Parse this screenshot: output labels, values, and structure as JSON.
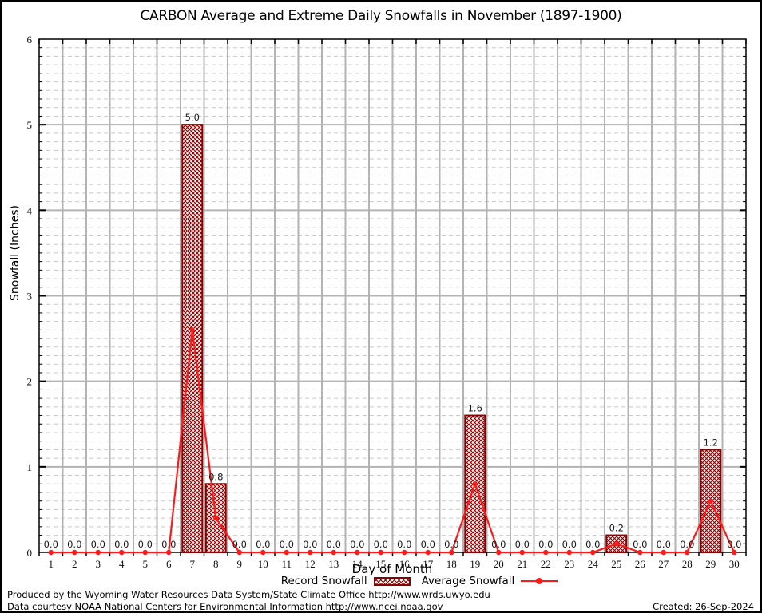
{
  "title": "CARBON Average and Extreme Daily Snowfalls in November (1897-1900)",
  "chart_data": {
    "type": "bar",
    "title": "CARBON Average and Extreme Daily Snowfalls in November (1897-1900)",
    "xlabel": "Day of Month",
    "ylabel": "Snowfall (Inches)",
    "ylim": [
      0,
      6
    ],
    "y_major_step": 1,
    "y_minor_step": 0.1,
    "grid": "on",
    "legend_position": "bottom",
    "categories": [
      1,
      2,
      3,
      4,
      5,
      6,
      7,
      8,
      9,
      10,
      11,
      12,
      13,
      14,
      15,
      16,
      17,
      18,
      19,
      20,
      21,
      22,
      23,
      24,
      25,
      26,
      27,
      28,
      29,
      30
    ],
    "series": [
      {
        "name": "Record Snowfall",
        "style": "bar",
        "color": "#8b0000",
        "values": [
          0.0,
          0.0,
          0.0,
          0.0,
          0.0,
          0.0,
          5.0,
          0.8,
          0.0,
          0.0,
          0.0,
          0.0,
          0.0,
          0.0,
          0.0,
          0.0,
          0.0,
          0.0,
          1.6,
          0.0,
          0.0,
          0.0,
          0.0,
          0.0,
          0.2,
          0.0,
          0.0,
          0.0,
          1.2,
          0.0
        ]
      },
      {
        "name": "Average Snowfall",
        "style": "line",
        "color": "#ff1a1a",
        "values": [
          0.0,
          0.0,
          0.0,
          0.0,
          0.0,
          0.0,
          2.6,
          0.4,
          0.0,
          0.0,
          0.0,
          0.0,
          0.0,
          0.0,
          0.0,
          0.0,
          0.0,
          0.0,
          0.8,
          0.0,
          0.0,
          0.0,
          0.0,
          0.0,
          0.1,
          0.0,
          0.0,
          0.0,
          0.6,
          0.0
        ]
      }
    ],
    "colors": {
      "bar_outline": "#8b0000",
      "bar_hatch": "#8b0000",
      "line": "#ff1a1a",
      "major_grid": "#b3b3b3",
      "minor_grid": "#c8c8c8",
      "axis": "#000000"
    }
  },
  "legend": {
    "record_label": "Record Snowfall",
    "average_label": "Average Snowfall"
  },
  "footer": {
    "line1": "Produced by the Wyoming Water Resources Data System/State Climate Office http://www.wrds.uwyo.edu",
    "line2": "Data courtesy NOAA National Centers for Environmental Information http://www.ncei.noaa.gov",
    "created": "Created: 26-Sep-2024"
  }
}
